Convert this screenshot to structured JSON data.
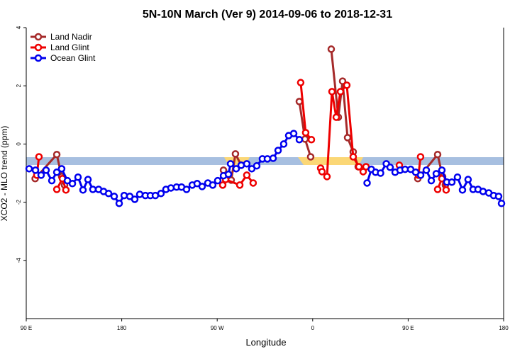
{
  "chart_data": {
    "type": "line",
    "title": "5N-10N March (Ver 9)   2014-09-06 to 2018-12-31",
    "x_label": "Longitude",
    "y_label": "XCO2 - MLO trend (ppm)",
    "xlim": [
      90,
      540
    ],
    "ylim": [
      -6,
      4
    ],
    "xticks": [
      {
        "value": 90,
        "label": "90 E"
      },
      {
        "value": 180,
        "label": "180"
      },
      {
        "value": 270,
        "label": "90 W"
      },
      {
        "value": 360,
        "label": "0"
      },
      {
        "value": 450,
        "label": "90 E"
      },
      {
        "value": 540,
        "label": "180"
      }
    ],
    "yticks": [
      4,
      2,
      0,
      -2,
      -4
    ],
    "legend": "top-left",
    "series": [
      {
        "name": "Land Nadir",
        "color": "#a52a2a",
        "x": [
          98.4,
          118.8,
          123.4,
          126.1,
          null,
          275.9,
          283.2,
          287.2,
          292.6,
          null,
          347.4,
          352.8,
          358.1,
          null,
          377.5,
          384.2,
          388.2,
          392.9,
          398.2,
          402.9,
          null,
          459.1,
          477.8,
          482.5,
          485.1
        ],
        "values": [
          -1.19,
          -0.36,
          -1.12,
          -1.41,
          null,
          -0.9,
          -1.24,
          -0.34,
          -0.73,
          null,
          1.46,
          0.17,
          -0.44,
          null,
          3.26,
          0.92,
          2.16,
          0.22,
          -0.27,
          -0.78,
          null,
          -1.19,
          -0.36,
          -1.12,
          -1.41
        ]
      },
      {
        "name": "Land Glint",
        "color": "#ee0000",
        "x": [
          100,
          102,
          null,
          118.8,
          124.1,
          127.4,
          null,
          275.2,
          277.9,
          291.3,
          297.9,
          303.9,
          null,
          348.7,
          353.4,
          358.8,
          null,
          367.5,
          368.8,
          373.5,
          378.2,
          382.2,
          386.2,
          392.2,
          398.2,
          403.6,
          407.6,
          410.3,
          null,
          441.7,
          null,
          459.7,
          461.7,
          null,
          477.8,
          481.8,
          485.8
        ],
        "values": [
          -1.07,
          -0.44,
          null,
          -1.56,
          -1.19,
          -1.58,
          null,
          -1.41,
          -1.22,
          -1.41,
          -1.07,
          -1.34,
          null,
          2.11,
          0.39,
          0.15,
          null,
          -0.83,
          -0.95,
          -1.12,
          1.8,
          0.92,
          1.8,
          2.02,
          -0.44,
          -0.78,
          -0.95,
          -0.78,
          null,
          -0.73,
          null,
          -1.07,
          -0.44,
          null,
          -1.56,
          -1.19,
          -1.58
        ]
      },
      {
        "name": "Ocean Glint",
        "color": "#0000ee",
        "x": [
          92.7,
          98.7,
          104,
          108.7,
          114.1,
          118.8,
          123.4,
          128.8,
          133.5,
          138.8,
          143.5,
          148.2,
          152.8,
          158.2,
          162.9,
          167.6,
          172.9,
          177.6,
          182.3,
          187.6,
          192.3,
          197,
          202.3,
          207,
          211.7,
          217,
          221.7,
          226.4,
          231.7,
          236.4,
          241.1,
          246.5,
          251.1,
          255.8,
          261.2,
          265.8,
          270.5,
          275.9,
          280.6,
          282.6,
          287.9,
          292.6,
          297.9,
          302.6,
          307.3,
          312.6,
          317.3,
          322.7,
          327.4,
          332.7,
          337.4,
          342.1,
          347.4,
          null,
          411.3,
          415.3,
          419.3,
          424,
          429.4,
          433,
          437.7,
          442.4,
          447.1,
          452.4,
          457.1,
          461.8,
          467.1,
          471.8,
          476.5,
          481.8,
          486.5,
          491.2,
          496.5,
          501.2,
          506.5,
          511.2,
          515.9,
          520.6,
          526,
          530.6,
          535.3,
          538
        ],
        "values": [
          -0.85,
          -0.9,
          -1.07,
          -0.9,
          -1.26,
          -0.97,
          -0.85,
          -1.26,
          -1.36,
          -1.14,
          -1.58,
          -1.22,
          -1.56,
          -1.56,
          -1.63,
          -1.7,
          -1.8,
          -2.04,
          -1.77,
          -1.8,
          -1.9,
          -1.73,
          -1.77,
          -1.77,
          -1.77,
          -1.7,
          -1.56,
          -1.51,
          -1.48,
          -1.48,
          -1.56,
          -1.41,
          -1.36,
          -1.46,
          -1.34,
          -1.41,
          -1.26,
          -1.09,
          -1.04,
          -0.68,
          -0.85,
          -0.73,
          -0.68,
          -0.85,
          -0.75,
          -0.51,
          -0.51,
          -0.49,
          -0.22,
          0,
          0.29,
          0.36,
          0.15,
          null,
          -1.34,
          -0.87,
          -0.97,
          -1.0,
          -0.68,
          -0.8,
          -0.97,
          -0.9,
          -0.87,
          -0.87,
          -0.97,
          -1.07,
          -0.9,
          -1.26,
          -1.02,
          -0.9,
          -1.31,
          -1.31,
          -1.14,
          -1.58,
          -1.22,
          -1.56,
          -1.56,
          -1.63,
          -1.68,
          -1.77,
          -1.8,
          -2.04
        ]
      }
    ]
  }
}
